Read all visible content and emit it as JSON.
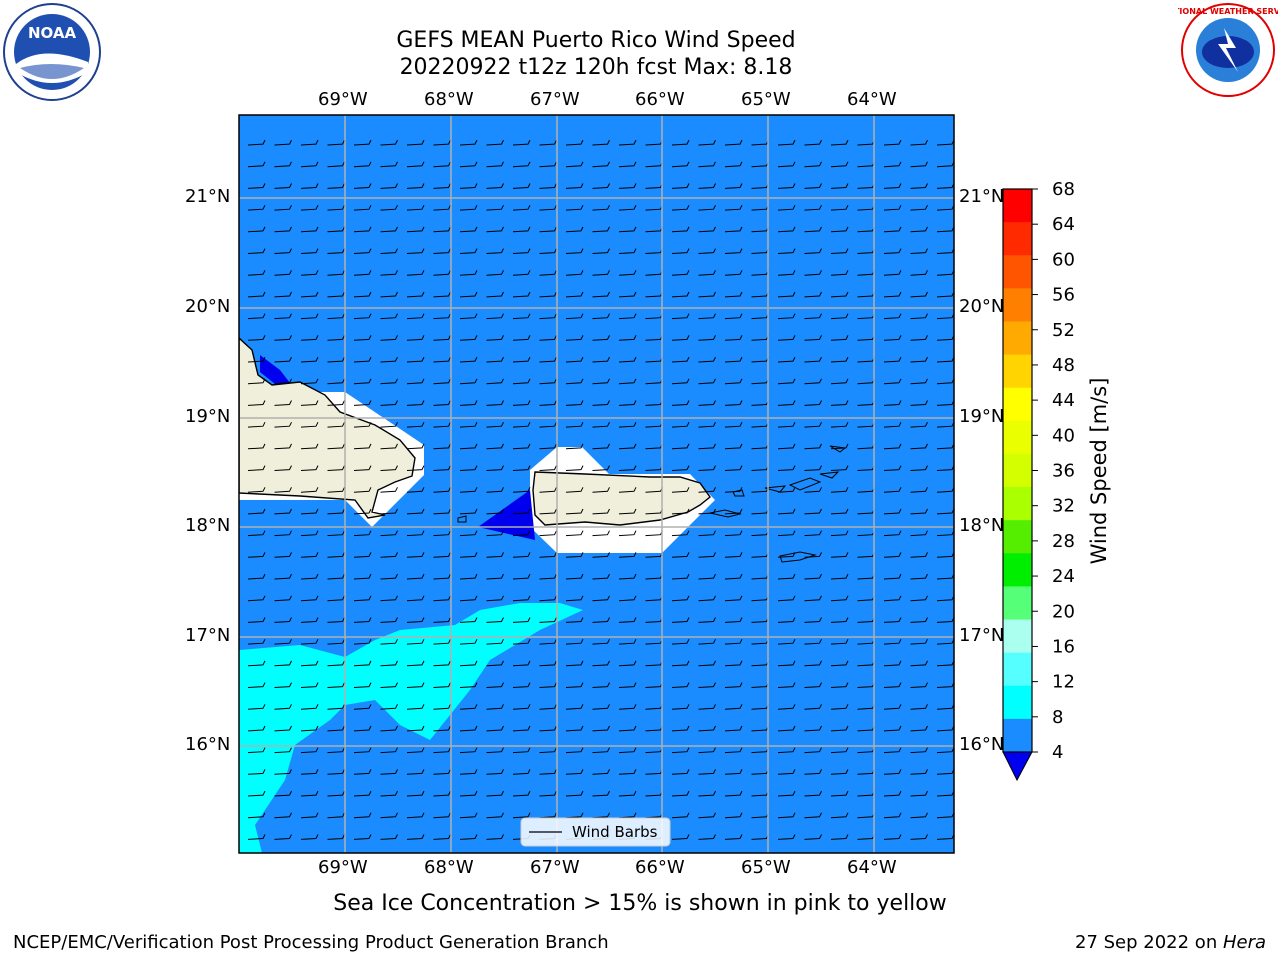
{
  "header": {
    "title_line1": "GEFS MEAN Puerto Rico Wind Speed",
    "title_line2": "20220922 t12z 120h fcst   Max: 8.18",
    "left_logo_text": "NOAA",
    "right_logo_text": "NATIONAL WEATHER SERVICE"
  },
  "map": {
    "lon_ticks": [
      "69°W",
      "68°W",
      "67°W",
      "66°W",
      "65°W",
      "64°W"
    ],
    "lat_ticks": [
      "21°N",
      "20°N",
      "19°N",
      "18°N",
      "17°N",
      "16°N"
    ],
    "legend_label": "Wind Barbs",
    "colors": {
      "ocean": "#1a8cff",
      "land": "#efefdc",
      "cyan": "#00ffff",
      "blue": "#0000ee"
    }
  },
  "colorbar": {
    "label": "Wind Speed [m/s]",
    "ticks": [
      "68",
      "64",
      "60",
      "56",
      "52",
      "48",
      "44",
      "40",
      "36",
      "32",
      "28",
      "24",
      "20",
      "16",
      "12",
      "8",
      "4"
    ],
    "colors": [
      "#ff0000",
      "#ff2a00",
      "#ff5500",
      "#ff8000",
      "#ffaa00",
      "#ffd400",
      "#ffff00",
      "#eaff00",
      "#d4ff00",
      "#aaff00",
      "#55ee00",
      "#00ee00",
      "#55ff77",
      "#aaffee",
      "#55ffff",
      "#00ffff",
      "#1a8cff"
    ],
    "under_color": "#0000ee"
  },
  "caption": "Sea Ice Concentration > 15% is shown in pink to yellow",
  "footer": {
    "left": "NCEP/EMC/Verification Post Processing Product Generation Branch",
    "right_prefix": "27 Sep 2022 on ",
    "right_machine": "Hera"
  }
}
